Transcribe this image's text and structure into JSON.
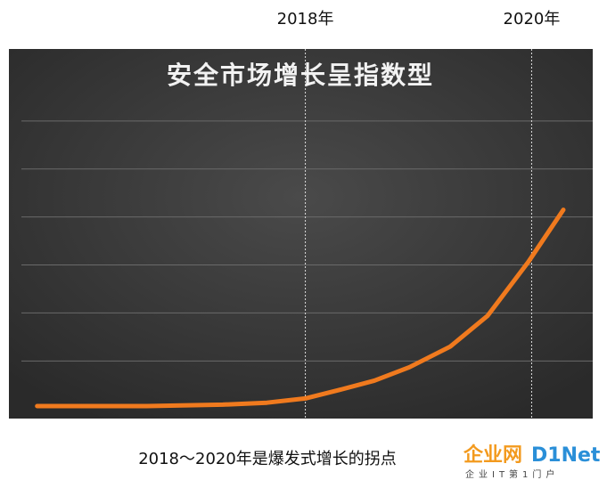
{
  "chart_data": {
    "type": "line",
    "title": "安全市场增长呈指数型",
    "x": [
      2015.63,
      2016.6,
      2017.27,
      2017.66,
      2018,
      2018.29,
      2018.61,
      2018.92,
      2019.28,
      2019.61,
      2019.97,
      2020.28
    ],
    "values": [
      0.06,
      0.06,
      0.09,
      0.13,
      0.22,
      0.39,
      0.59,
      0.87,
      1.3,
      1.94,
      3.06,
      4.15
    ],
    "color": "#f07a1e",
    "xlim": [
      2015.38,
      2020.54
    ],
    "ylim": [
      -0.2,
      7.5
    ],
    "yticks": [
      1,
      2,
      3,
      4,
      5,
      6
    ],
    "grid": true,
    "markers": [
      {
        "x": 2018,
        "label": "2018年"
      },
      {
        "x": 2020,
        "label": "2020年"
      }
    ],
    "caption": "2018～2020年是爆发式增长的拐点"
  },
  "logo": {
    "name": "企业网",
    "brand": "D1Net",
    "tagline": "企业IT第1门户"
  }
}
